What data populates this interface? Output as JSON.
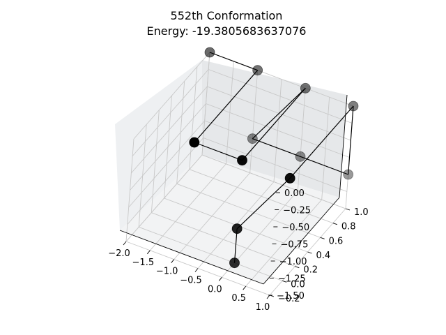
{
  "chart_data": {
    "type": "scatter3d",
    "title_line1": "552th Conformation",
    "title_line2": "Energy: -19.3805683637076",
    "xlabel": "",
    "ylabel": "",
    "zlabel": "",
    "grid": true,
    "x_ticks": [
      "−2.0",
      "−1.5",
      "−1.0",
      "−0.5",
      "0.0",
      "0.5",
      "1.0"
    ],
    "y_ticks": [
      "−0.2",
      "0.0",
      "0.2",
      "0.4",
      "0.6",
      "0.8",
      "1.0"
    ],
    "z_ticks": [
      "0.00",
      "−0.25",
      "−0.50",
      "−0.75",
      "−1.00",
      "−1.25",
      "−1.50"
    ],
    "x_tick_values": [
      -2.0,
      -1.5,
      -1.0,
      -0.5,
      0.0,
      0.5,
      1.0
    ],
    "y_tick_values": [
      -0.2,
      0.0,
      0.2,
      0.4,
      0.6,
      0.8,
      1.0
    ],
    "z_tick_values": [
      0.0,
      -0.25,
      -0.5,
      -0.75,
      -1.0,
      -1.25,
      -1.5
    ],
    "marker_color": "#000000",
    "line_color": "#000000",
    "points": [
      {
        "x": -2.0,
        "y": 1.0,
        "z": 0.0
      },
      {
        "x": -1.0,
        "y": 1.0,
        "z": 0.0
      },
      {
        "x": -1.0,
        "y": 0.0,
        "z": 0.0
      },
      {
        "x": 0.0,
        "y": 0.0,
        "z": 0.0
      },
      {
        "x": 0.0,
        "y": 1.0,
        "z": 0.0
      },
      {
        "x": -1.0,
        "y": 1.0,
        "z": -1.0
      },
      {
        "x": 0.0,
        "y": 1.0,
        "z": -1.0
      },
      {
        "x": 1.0,
        "y": 1.0,
        "z": -1.0
      },
      {
        "x": 1.0,
        "y": 1.0,
        "z": 0.0
      },
      {
        "x": 1.0,
        "y": 0.0,
        "z": 0.0
      },
      {
        "x": 0.0,
        "y": 0.0,
        "z": -1.0
      },
      {
        "x": 0.0,
        "y": 0.0,
        "z": -1.5
      }
    ]
  }
}
